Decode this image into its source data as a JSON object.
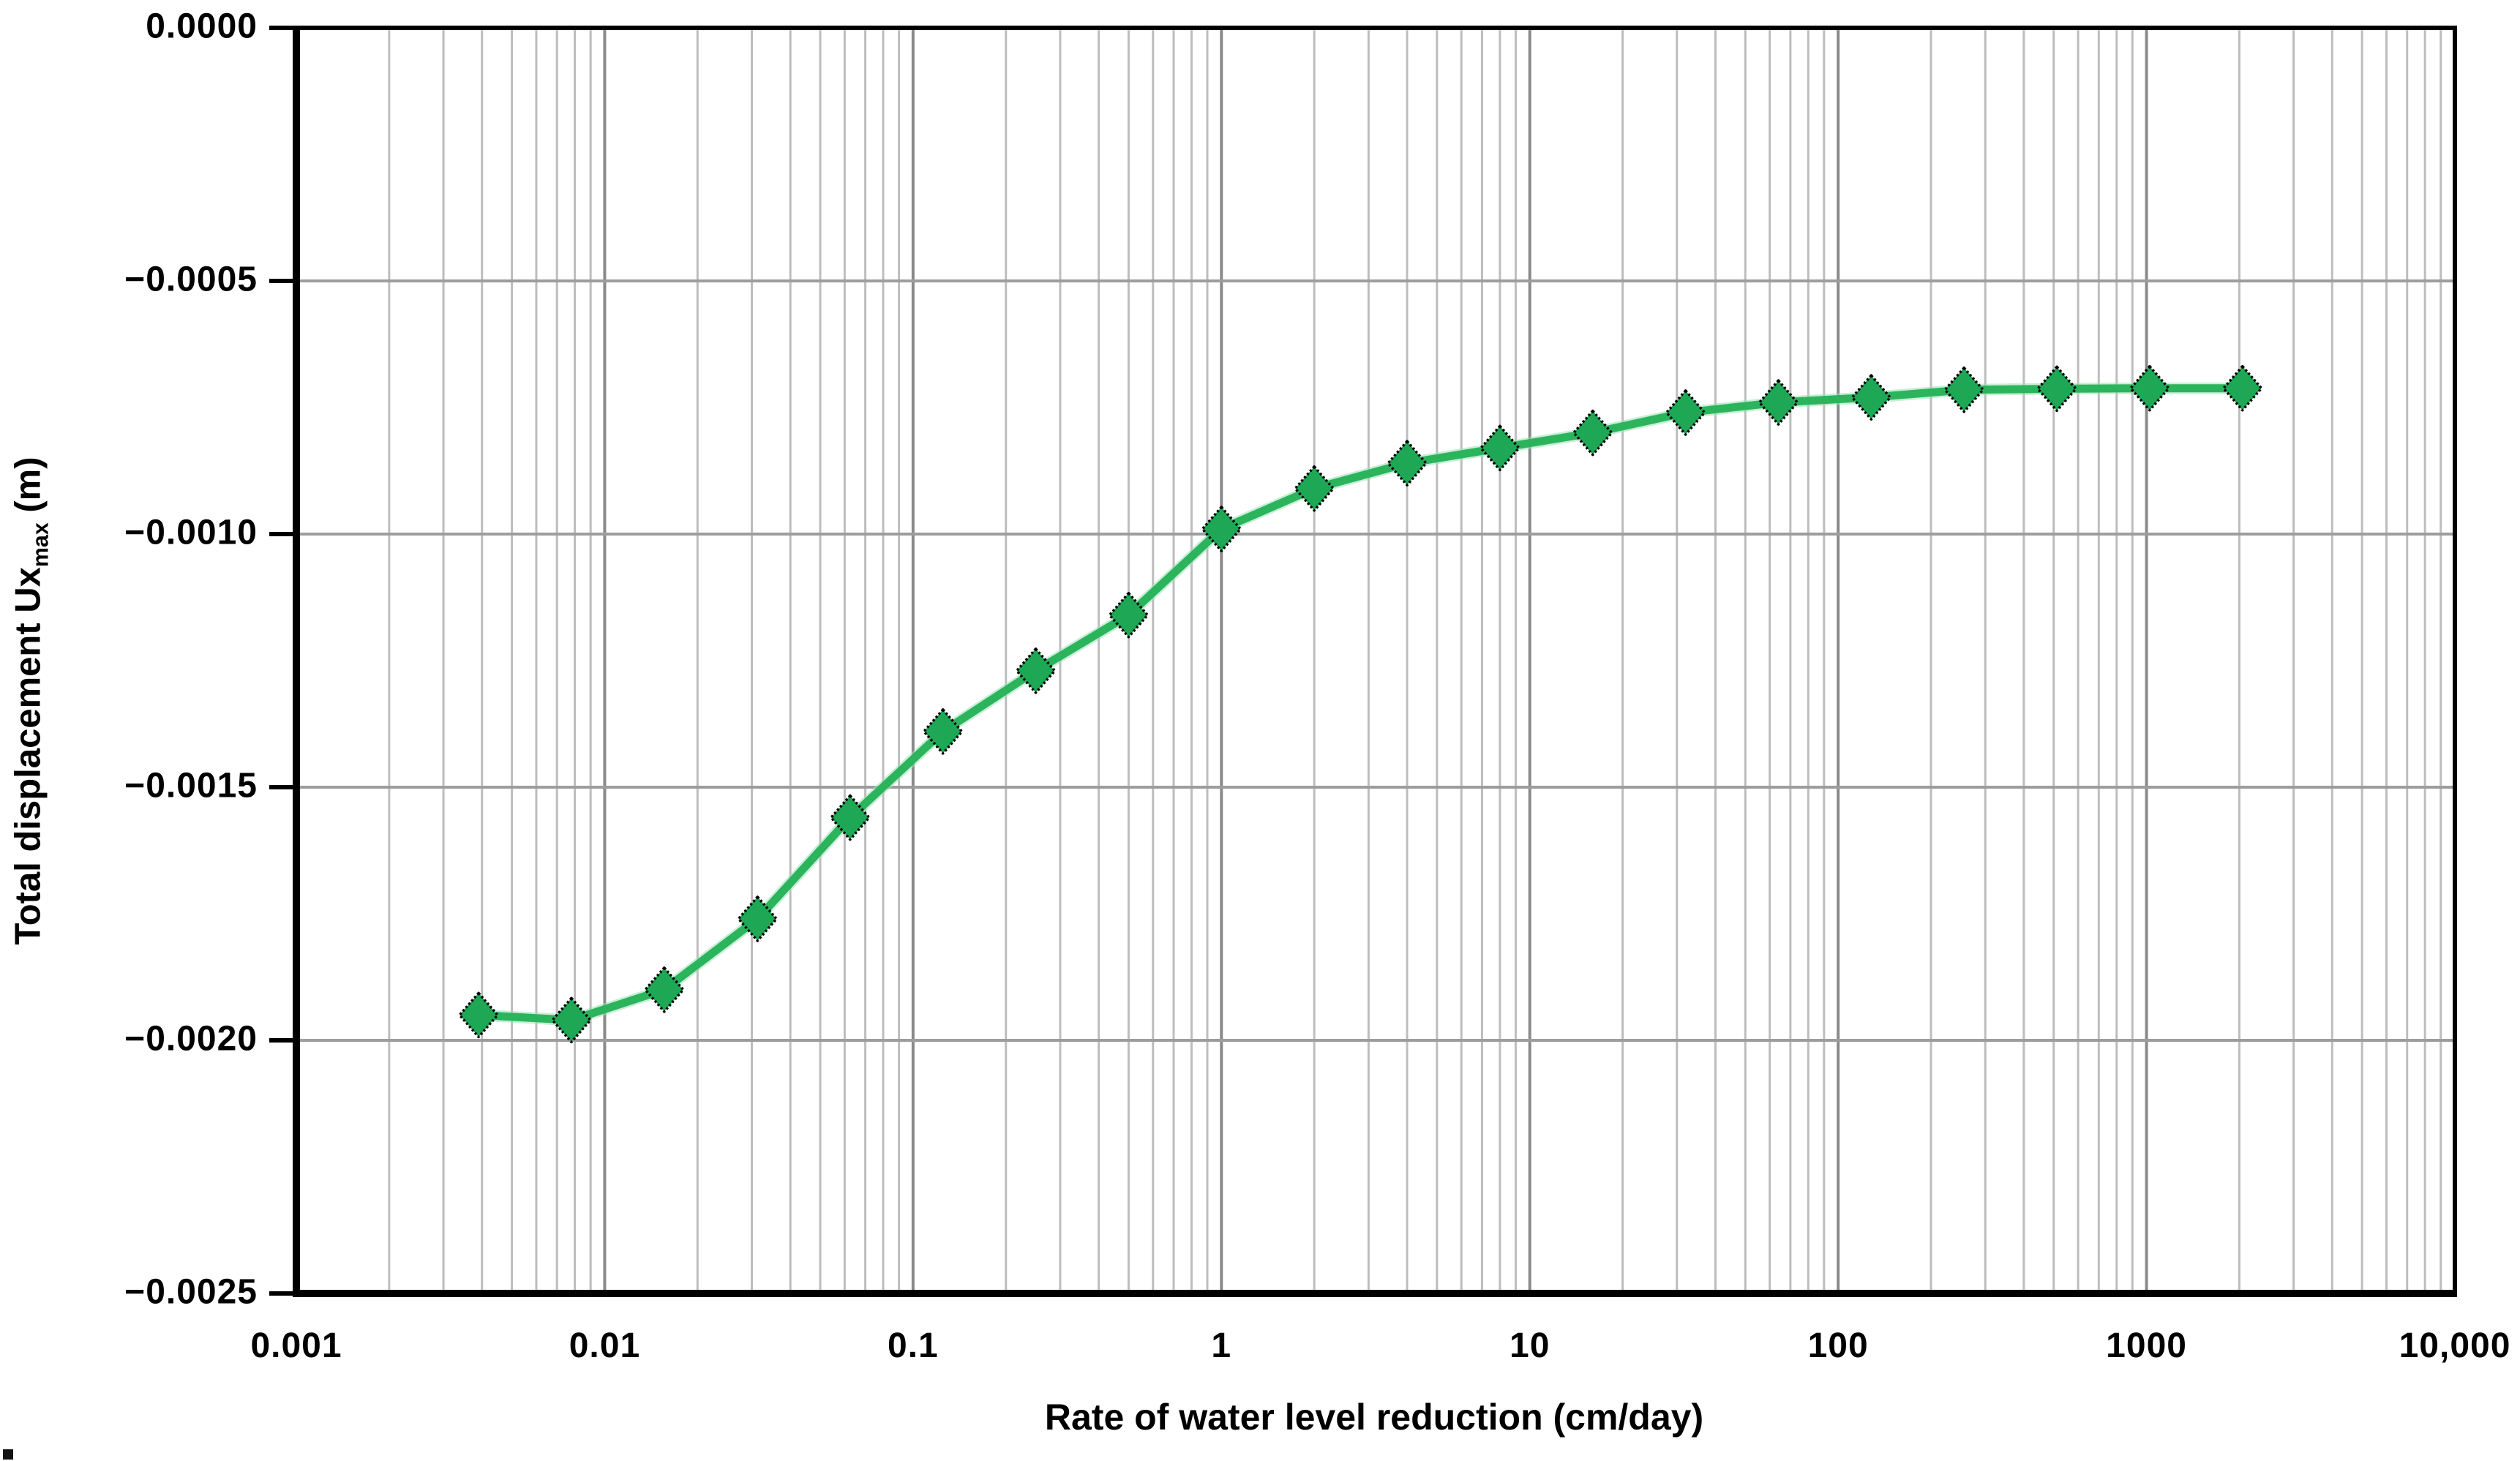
{
  "chart_data": {
    "type": "line",
    "title": "",
    "x_scale": "log",
    "xlabel": "Rate of water level reduction (cm/day)",
    "ylabel": {
      "prefix": "Total displacement Ux",
      "sub": "max",
      "suffix": " (m)"
    },
    "xlim": [
      0.001,
      10000
    ],
    "ylim": [
      -0.0025,
      0
    ],
    "x_tick_labels": [
      "0.001",
      "0.01",
      "0.1",
      "1",
      "10",
      "100",
      "1000",
      "10,000"
    ],
    "x_tick_values": [
      0.001,
      0.01,
      0.1,
      1,
      10,
      100,
      1000,
      10000
    ],
    "y_tick_labels": [
      "0.0000",
      "−0.0005",
      "−0.0010",
      "−0.0015",
      "−0.0020",
      "−0.0025"
    ],
    "y_tick_values": [
      0,
      -0.0005,
      -0.001,
      -0.0015,
      -0.002,
      -0.0025
    ],
    "grid": {
      "vertical_minor": true,
      "vertical_major": true,
      "horizontal": true
    },
    "legend": "none",
    "series": [
      {
        "name": "Uxmax",
        "marker": "diamond",
        "x": [
          0.0039,
          0.0078,
          0.0156,
          0.0313,
          0.0625,
          0.125,
          0.25,
          0.5,
          1,
          2,
          4,
          8,
          16,
          32,
          64,
          128,
          256,
          512,
          1024,
          2048
        ],
        "y": [
          -0.00195,
          -0.00196,
          -0.0019,
          -0.00176,
          -0.00156,
          -0.00139,
          -0.00127,
          -0.00116,
          -0.00099,
          -0.00091,
          -0.00086,
          -0.00083,
          -0.0008,
          -0.00076,
          -0.00074,
          -0.00073,
          -0.000715,
          -0.000713,
          -0.000712,
          -0.000712
        ]
      }
    ],
    "palette": {
      "line": "#2bb45c",
      "line_halo": "#9ae0b6",
      "marker_fill": "#1ea755",
      "marker_stroke": "#000000",
      "grid_minor": "#bdbdbd",
      "grid_major": "#8a8a8a",
      "grid_horizontal": "#9d9d9d",
      "axis": "#000000",
      "text": "#000000"
    }
  }
}
